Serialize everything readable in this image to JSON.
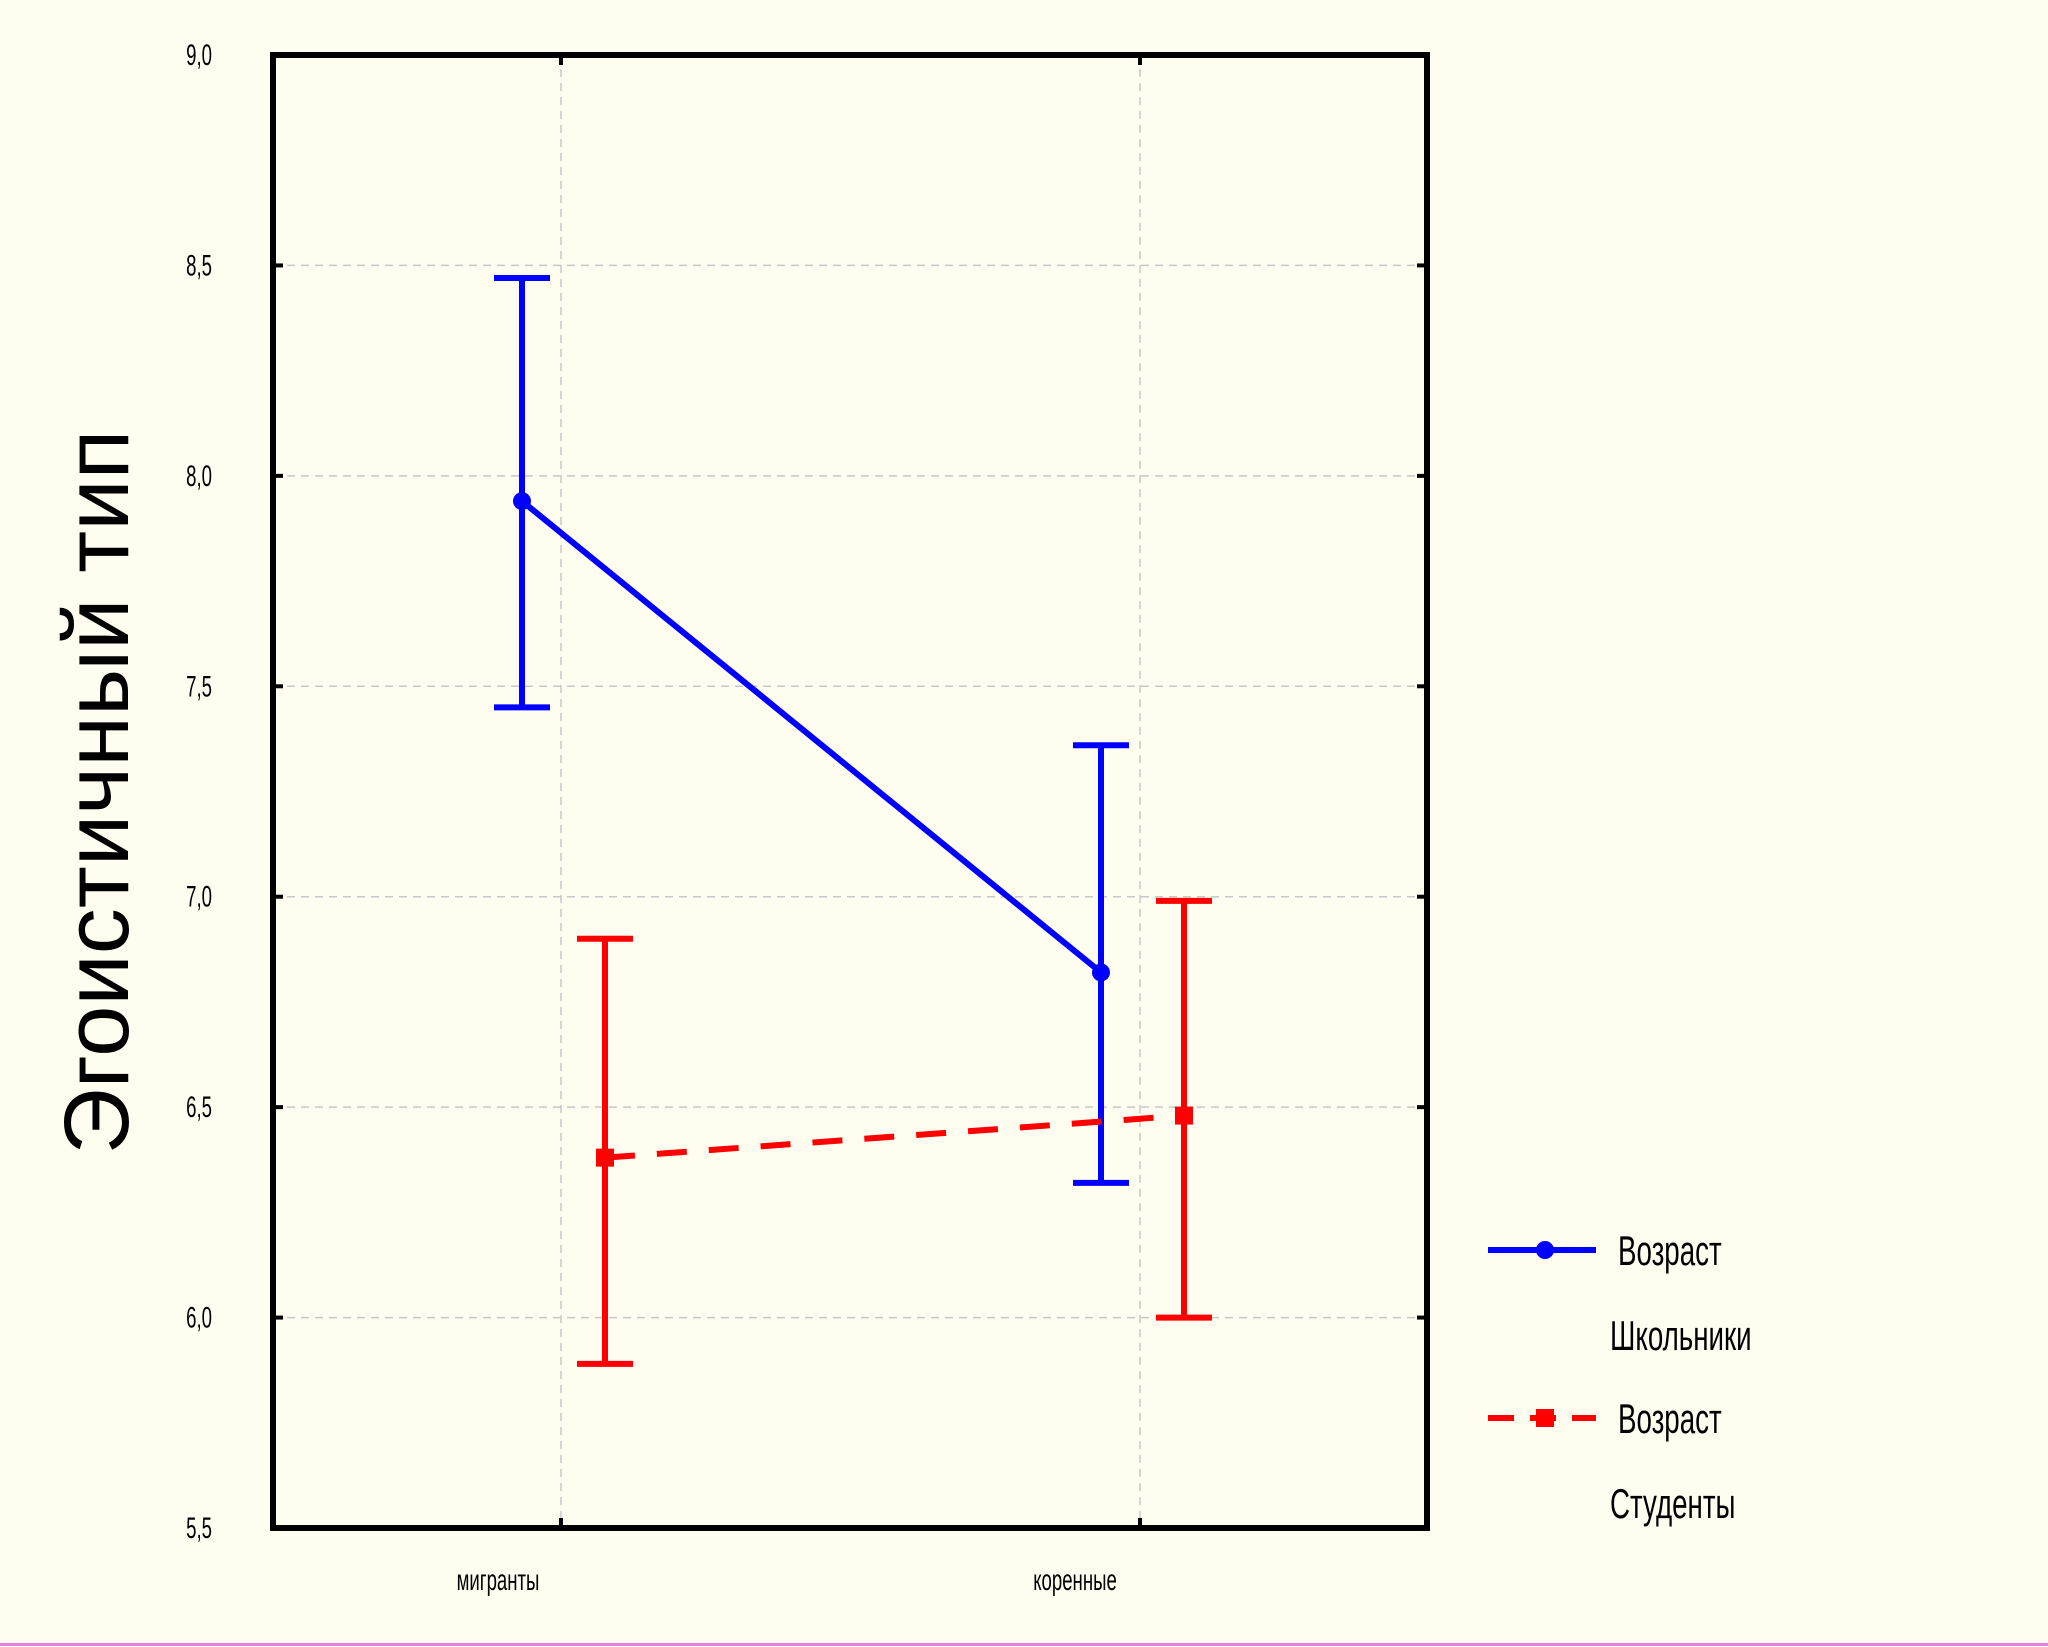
{
  "chart_data": {
    "type": "line",
    "ylabel": "Эгоистичный тип",
    "xlabel": "",
    "categories": [
      "мигранты",
      "коренные"
    ],
    "ylim": [
      5.5,
      9.0
    ],
    "yticks": [
      "5,5",
      "6,0",
      "6,5",
      "7,0",
      "7,5",
      "8,0",
      "8,5",
      "9,0"
    ],
    "ytick_values": [
      5.5,
      6.0,
      6.5,
      7.0,
      7.5,
      8.0,
      8.5,
      9.0
    ],
    "grid": true,
    "legend_position": "right",
    "series": [
      {
        "name": "Школьники",
        "legend_header": "Возраст",
        "color": "#0000ff",
        "line_style": "solid",
        "marker": "circle",
        "values": [
          7.94,
          6.82
        ],
        "lower": [
          7.45,
          6.32
        ],
        "upper": [
          8.47,
          7.36
        ]
      },
      {
        "name": "Студенты",
        "legend_header": "Возраст",
        "color": "#ff0000",
        "line_style": "dashed",
        "marker": "square",
        "values": [
          6.38,
          6.48
        ],
        "lower": [
          5.89,
          6.0
        ],
        "upper": [
          6.9,
          6.99
        ]
      }
    ]
  }
}
